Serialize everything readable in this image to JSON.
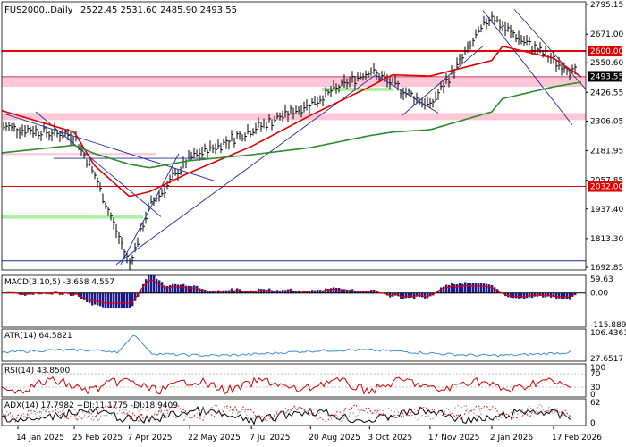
{
  "header": {
    "symbol": "FUS2000.,Daily",
    "ohlc": "2522.45  2531.60  2485.90  2493.55"
  },
  "colors": {
    "price_bar": "#000000",
    "ema_fast": "#e00000",
    "ema_slow": "#2a8a2a",
    "trendline": "#1d2a9c",
    "resistance_line": "#e00000",
    "support_zone": "#ffc7d6",
    "green_zone": "#a8f0a0",
    "macd_hist": "#1a1a8c",
    "macd_signal": "#e00000",
    "atr_line": "#3a8fd6",
    "rsi_line": "#cc0000",
    "adx_line": "#000000",
    "plus_di_line": "#cc0000",
    "minus_di_line": "#888888",
    "current_price_tag": "#000000",
    "level_tag": "#e00000"
  },
  "chart_data": [
    {
      "type": "line",
      "panel": "price",
      "x_tick_labels": [
        "14 Jan 2025",
        "25 Feb 2025",
        "7 Apr 2025",
        "22 May 2025",
        "7 Jul 2025",
        "20 Aug 2025",
        "3 Oct 2025",
        "17 Nov 2025",
        "2 Jan 2026",
        "17 Feb 2026"
      ],
      "y_tick_labels": [
        "2795.15",
        "2671.00",
        "2550.60",
        "2426.55",
        "2306.05",
        "2181.95",
        "2057.85",
        "1937.40",
        "1813.30",
        "1692.85"
      ],
      "ylim": [
        1692.85,
        2795.15
      ],
      "current_price": "2493.55",
      "level_labels": [
        "2600.00",
        "2032.00"
      ],
      "x": [
        "14 Jan 2025",
        "25 Feb 2025",
        "12 Mar 2025",
        "7 Apr 2025",
        "22 Apr 2025",
        "22 May 2025",
        "7 Jul 2025",
        "20 Aug 2025",
        "3 Oct 2025",
        "20 Oct 2025",
        "17 Nov 2025",
        "2 Jan 2026",
        "10 Jan 2026",
        "17 Feb 2026",
        "10 Mar 2026"
      ],
      "series": [
        {
          "values": [
            2275,
            2245,
            2080,
            1705,
            1950,
            2150,
            2270,
            2380,
            2520,
            2460,
            2370,
            2755,
            2700,
            2560,
            2493.55
          ]
        },
        {
          "values": [
            2330,
            2260,
            2120,
            1990,
            2010,
            2090,
            2200,
            2330,
            2450,
            2500,
            2495,
            2560,
            2620,
            2570,
            2490
          ]
        },
        {
          "values": [
            2180,
            2205,
            2170,
            2125,
            2110,
            2140,
            2165,
            2195,
            2245,
            2260,
            2270,
            2345,
            2400,
            2450,
            2470
          ]
        }
      ],
      "zones": [
        {
          "from": 2450,
          "to": 2490
        },
        {
          "from": 2310,
          "to": 2340
        },
        {
          "from": 2164,
          "to": 2172
        },
        {
          "from": 2432,
          "to": 2446
        },
        {
          "from": 1897,
          "to": 1910
        }
      ],
      "horizontal_levels": [
        2600,
        2032,
        1720
      ]
    },
    {
      "type": "bar",
      "panel": "macd",
      "title": "MACD(3,10,5) -3.658 4.557",
      "y_tick_labels": [
        "59.63",
        "0.00",
        "-115.889"
      ],
      "ylim": [
        -115.889,
        59.63
      ]
    },
    {
      "type": "line",
      "panel": "atr",
      "title": "ATR(14) 64.5821",
      "y_tick_labels": [
        "106.4361",
        "27.6517"
      ],
      "ylim": [
        27.6517,
        106.4361
      ]
    },
    {
      "type": "line",
      "panel": "rsi",
      "title": "RSI(14) 43.8500",
      "y_tick_labels": [
        "100",
        "70",
        "30",
        "0"
      ],
      "ylim": [
        0,
        100
      ]
    },
    {
      "type": "line",
      "panel": "adx",
      "title": "ADX(14) 17.7982 +DI:11.1775 -DI:18.9409",
      "y_tick_labels": [
        "62",
        "0"
      ],
      "ylim": [
        0,
        62
      ]
    }
  ]
}
